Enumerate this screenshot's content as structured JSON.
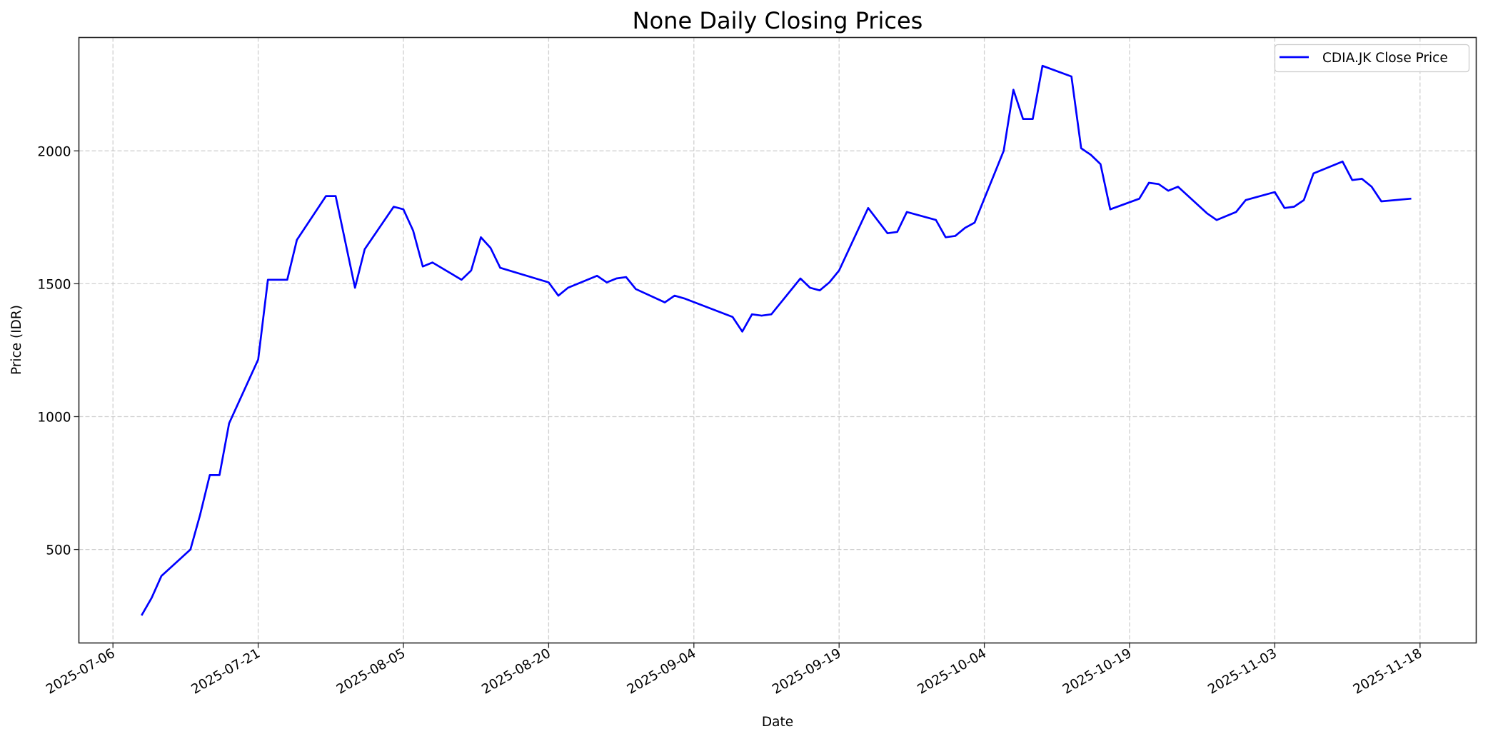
{
  "chart_data": {
    "type": "line",
    "title": "None Daily Closing Prices",
    "xlabel": "Date",
    "ylabel": "Price (IDR)",
    "ylim": [
      150,
      2429
    ],
    "xlim": [
      "2025-07-02",
      "2025-11-23"
    ],
    "grid": true,
    "legend_position": "upper right",
    "x_ticks": [
      "2025-07-06",
      "2025-07-21",
      "2025-08-05",
      "2025-08-20",
      "2025-09-04",
      "2025-09-19",
      "2025-10-04",
      "2025-10-19",
      "2025-11-03",
      "2025-11-18"
    ],
    "y_ticks": [
      500,
      1000,
      1500,
      2000
    ],
    "series": [
      {
        "name": "CDIA.JK Close Price",
        "color": "#0000ff",
        "x": [
          "2025-07-09",
          "2025-07-10",
          "2025-07-11",
          "2025-07-14",
          "2025-07-15",
          "2025-07-16",
          "2025-07-17",
          "2025-07-18",
          "2025-07-21",
          "2025-07-22",
          "2025-07-24",
          "2025-07-25",
          "2025-07-28",
          "2025-07-29",
          "2025-07-31",
          "2025-08-01",
          "2025-08-04",
          "2025-08-05",
          "2025-08-06",
          "2025-08-07",
          "2025-08-08",
          "2025-08-11",
          "2025-08-12",
          "2025-08-13",
          "2025-08-14",
          "2025-08-15",
          "2025-08-20",
          "2025-08-21",
          "2025-08-22",
          "2025-08-25",
          "2025-08-26",
          "2025-08-27",
          "2025-08-28",
          "2025-08-29",
          "2025-09-01",
          "2025-09-02",
          "2025-09-03",
          "2025-09-08",
          "2025-09-09",
          "2025-09-10",
          "2025-09-11",
          "2025-09-12",
          "2025-09-15",
          "2025-09-16",
          "2025-09-17",
          "2025-09-18",
          "2025-09-19",
          "2025-09-22",
          "2025-09-24",
          "2025-09-25",
          "2025-09-26",
          "2025-09-29",
          "2025-09-30",
          "2025-10-01",
          "2025-10-02",
          "2025-10-03",
          "2025-10-06",
          "2025-10-07",
          "2025-10-08",
          "2025-10-09",
          "2025-10-10",
          "2025-10-13",
          "2025-10-14",
          "2025-10-15",
          "2025-10-16",
          "2025-10-17",
          "2025-10-20",
          "2025-10-21",
          "2025-10-22",
          "2025-10-23",
          "2025-10-24",
          "2025-10-27",
          "2025-10-28",
          "2025-10-30",
          "2025-10-31",
          "2025-11-03",
          "2025-11-04",
          "2025-11-05",
          "2025-11-06",
          "2025-11-07",
          "2025-11-10",
          "2025-11-11",
          "2025-11-12",
          "2025-11-13",
          "2025-11-14",
          "2025-11-17"
        ],
        "values": [
          255,
          318,
          400,
          500,
          630,
          780,
          780,
          975,
          1215,
          1515,
          1515,
          1665,
          1830,
          1830,
          1485,
          1630,
          1790,
          1780,
          1700,
          1565,
          1580,
          1515,
          1550,
          1675,
          1635,
          1560,
          1505,
          1455,
          1485,
          1530,
          1505,
          1520,
          1525,
          1480,
          1430,
          1455,
          1445,
          1375,
          1320,
          1385,
          1380,
          1385,
          1520,
          1485,
          1475,
          1505,
          1550,
          1785,
          1690,
          1695,
          1770,
          1740,
          1675,
          1680,
          1710,
          1730,
          2000,
          2230,
          2120,
          2120,
          2320,
          2280,
          2010,
          1985,
          1950,
          1780,
          1820,
          1880,
          1875,
          1850,
          1865,
          1765,
          1740,
          1770,
          1815,
          1845,
          1785,
          1790,
          1815,
          1915,
          1960,
          1890,
          1895,
          1865,
          1810,
          1820
        ]
      }
    ]
  },
  "labels": {
    "title": "None Daily Closing Prices",
    "xlabel": "Date",
    "ylabel": "Price (IDR)",
    "legend": "CDIA.JK Close Price"
  }
}
